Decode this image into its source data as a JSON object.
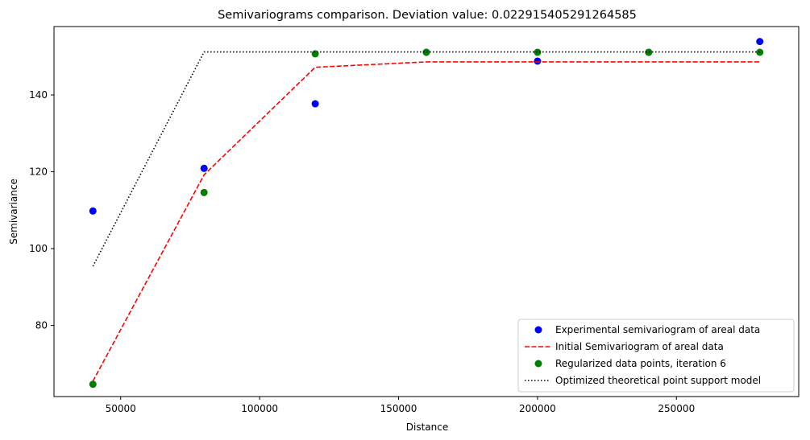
{
  "chart_data": {
    "type": "scatter",
    "title": "Semivariograms comparison. Deviation value: 0.022915405291264585",
    "xlabel": "Distance",
    "ylabel": "Semivariance",
    "xlim": [
      26000,
      294000
    ],
    "ylim": [
      61.5,
      157.8
    ],
    "x_ticks": [
      50000,
      100000,
      150000,
      200000,
      250000
    ],
    "y_ticks": [
      80,
      100,
      120,
      140
    ],
    "x_tick_labels": [
      "50000",
      "100000",
      "150000",
      "200000",
      "250000"
    ],
    "y_tick_labels": [
      "80",
      "100",
      "120",
      "140"
    ],
    "grid": false,
    "legend_position": "lower-right",
    "series": [
      {
        "name": "Experimental semivariogram of areal data",
        "kind": "markers",
        "color": "#0000ff",
        "x": [
          40000,
          80000,
          120000,
          160000,
          200000,
          240000,
          280000
        ],
        "y": [
          109.8,
          120.9,
          137.7,
          151.1,
          148.8,
          151.1,
          153.9
        ]
      },
      {
        "name": "Initial Semivariogram of areal data",
        "kind": "dashed-line",
        "color": "#ff0000",
        "x": [
          40000,
          80000,
          120000,
          160000,
          200000,
          240000,
          280000
        ],
        "y": [
          65.5,
          119.2,
          147.2,
          148.6,
          148.6,
          148.6,
          148.6
        ]
      },
      {
        "name": "Regularized data points, iteration 6",
        "kind": "markers",
        "color": "#008000",
        "x": [
          40000,
          80000,
          120000,
          160000,
          200000,
          240000,
          280000
        ],
        "y": [
          64.7,
          114.6,
          150.7,
          151.1,
          151.1,
          151.1,
          151.1
        ]
      },
      {
        "name": "Optimized theoretical point support model",
        "kind": "dotted-line",
        "color": "#000000",
        "x": [
          40000,
          80000,
          120000,
          160000,
          200000,
          240000,
          280000
        ],
        "y": [
          95.4,
          151.2,
          151.2,
          151.2,
          151.2,
          151.2,
          151.2
        ]
      }
    ]
  }
}
